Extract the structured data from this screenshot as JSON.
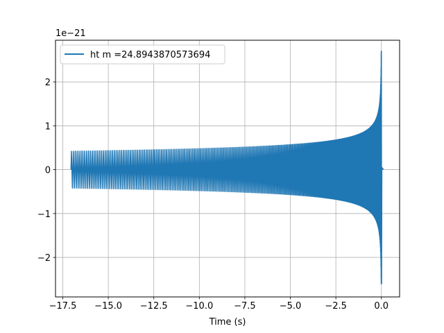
{
  "chart_data": {
    "type": "line",
    "title": "",
    "xlabel": "Time (s)",
    "ylabel": "",
    "y_offset_label": "1e−21",
    "xlim": [
      -17.9,
      1.0
    ],
    "ylim": [
      -2.9,
      2.95
    ],
    "x_ticks": [
      -17.5,
      -15.0,
      -12.5,
      -10.0,
      -7.5,
      -5.0,
      -2.5,
      0.0
    ],
    "x_tick_labels": [
      "−17.5",
      "−15.0",
      "−12.5",
      "−10.0",
      "−7.5",
      "−5.0",
      "−2.5",
      "0.0"
    ],
    "y_ticks": [
      -2,
      -1,
      0,
      1,
      2
    ],
    "y_tick_labels": [
      "−2",
      "−1",
      "0",
      "1",
      "2"
    ],
    "grid": true,
    "legend_position": "top-left",
    "series": [
      {
        "name": "ht m =24.8943870573694",
        "color": "#1f77b4",
        "signal": "chirp",
        "t_start": -17.05,
        "t_merger": 0.0,
        "t_end": 0.12,
        "initial_amplitude": 0.42,
        "peak_amplitude": 2.7,
        "min_value": -2.6,
        "post_merger_value": 0.0
      }
    ]
  }
}
